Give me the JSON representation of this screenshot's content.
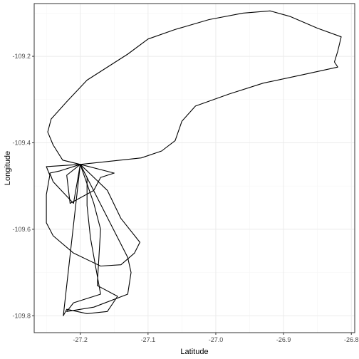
{
  "chart_data": {
    "type": "line",
    "title": "",
    "xlabel": "Latitude",
    "ylabel": "Longitude",
    "xlim": [
      -27.268,
      -26.795
    ],
    "ylim": [
      -109.839,
      -109.078
    ],
    "x_ticks": [
      -27.2,
      -27.1,
      -27.0,
      -26.9,
      -26.8
    ],
    "x_tick_labels": [
      "-27.2",
      "-27.1",
      "-27.0",
      "-26.9",
      "-26.8"
    ],
    "y_ticks": [
      -109.2,
      -109.4,
      -109.6,
      -109.8
    ],
    "y_tick_labels": [
      "-109.2",
      "-109.4",
      "-109.6",
      "-109.8"
    ],
    "grid": true,
    "legend": "none",
    "colors": {
      "background": "#ffffff",
      "panel_border": "#333333",
      "grid_major": "#ebebeb",
      "grid_minor": "#f5f5f5",
      "line": "#000000"
    },
    "series": [
      {
        "points": [
          [
            -27.2,
            -109.45
          ],
          [
            -27.11,
            -109.435
          ],
          [
            -27.08,
            -109.419
          ],
          [
            -27.06,
            -109.395
          ],
          [
            -27.05,
            -109.35
          ],
          [
            -27.03,
            -109.315
          ],
          [
            -26.98,
            -109.287
          ],
          [
            -26.93,
            -109.262
          ],
          [
            -26.87,
            -109.242
          ],
          [
            -26.82,
            -109.225
          ],
          [
            -26.825,
            -109.213
          ],
          [
            -26.82,
            -109.188
          ],
          [
            -26.815,
            -109.155
          ],
          [
            -26.85,
            -109.135
          ],
          [
            -26.89,
            -109.108
          ],
          [
            -26.92,
            -109.095
          ],
          [
            -26.96,
            -109.1
          ],
          [
            -27.01,
            -109.115
          ],
          [
            -27.06,
            -109.138
          ],
          [
            -27.1,
            -109.16
          ],
          [
            -27.13,
            -109.195
          ],
          [
            -27.19,
            -109.255
          ],
          [
            -27.22,
            -109.305
          ],
          [
            -27.243,
            -109.345
          ],
          [
            -27.248,
            -109.375
          ],
          [
            -27.24,
            -109.405
          ],
          [
            -27.226,
            -109.44
          ],
          [
            -27.2,
            -109.45
          ]
        ]
      },
      {
        "points": [
          [
            -27.2,
            -109.45
          ],
          [
            -27.25,
            -109.455
          ],
          [
            -27.245,
            -109.475
          ],
          [
            -27.25,
            -109.52
          ],
          [
            -27.25,
            -109.585
          ],
          [
            -27.24,
            -109.615
          ],
          [
            -27.21,
            -109.655
          ],
          [
            -27.17,
            -109.685
          ],
          [
            -27.14,
            -109.682
          ],
          [
            -27.12,
            -109.655
          ],
          [
            -27.112,
            -109.63
          ],
          [
            -27.14,
            -109.575
          ],
          [
            -27.16,
            -109.51
          ],
          [
            -27.2,
            -109.45
          ]
        ]
      },
      {
        "points": [
          [
            -27.2,
            -109.45
          ],
          [
            -27.23,
            -109.465
          ],
          [
            -27.245,
            -109.47
          ],
          [
            -27.24,
            -109.49
          ],
          [
            -27.21,
            -109.54
          ],
          [
            -27.2,
            -109.45
          ],
          [
            -27.19,
            -109.48
          ],
          [
            -27.19,
            -109.545
          ],
          [
            -27.185,
            -109.62
          ],
          [
            -27.17,
            -109.75
          ],
          [
            -27.21,
            -109.77
          ],
          [
            -27.22,
            -109.79
          ],
          [
            -27.18,
            -109.78
          ],
          [
            -27.13,
            -109.75
          ],
          [
            -27.125,
            -109.7
          ],
          [
            -27.13,
            -109.665
          ],
          [
            -27.2,
            -109.45
          ]
        ]
      },
      {
        "points": [
          [
            -27.2,
            -109.45
          ],
          [
            -27.22,
            -109.475
          ],
          [
            -27.215,
            -109.54
          ],
          [
            -27.18,
            -109.51
          ],
          [
            -27.17,
            -109.48
          ],
          [
            -27.15,
            -109.47
          ],
          [
            -27.2,
            -109.45
          ],
          [
            -27.18,
            -109.54
          ],
          [
            -27.17,
            -109.6
          ],
          [
            -27.175,
            -109.73
          ],
          [
            -27.145,
            -109.755
          ],
          [
            -27.16,
            -109.79
          ],
          [
            -27.19,
            -109.795
          ],
          [
            -27.22,
            -109.785
          ],
          [
            -27.225,
            -109.8
          ],
          [
            -27.2,
            -109.45
          ]
        ]
      }
    ]
  }
}
